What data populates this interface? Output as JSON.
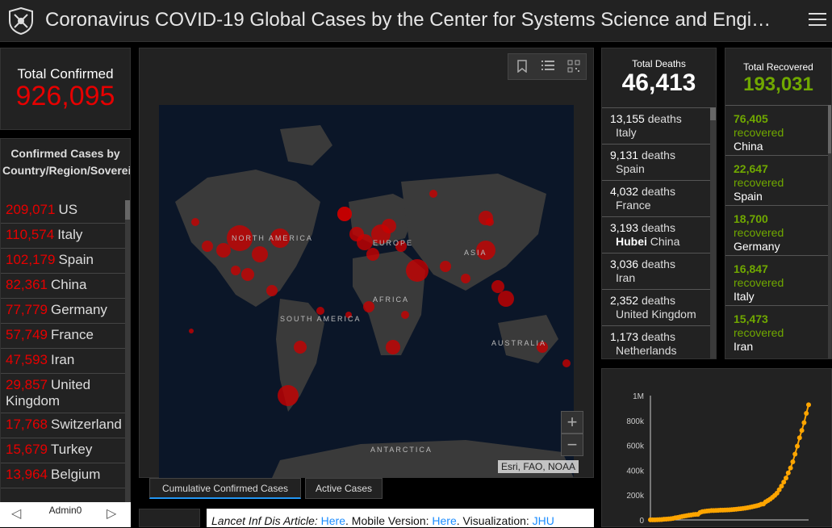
{
  "header": {
    "title": "Coronavirus COVID-19 Global Cases by the Center for Systems Science and Engi…"
  },
  "total_confirmed": {
    "label": "Total Confirmed",
    "value": "926,095"
  },
  "confirmed_by_country": {
    "header": "Confirmed Cases by Country/Region/Sovereignty",
    "items": [
      {
        "count": "209,071",
        "name": "US"
      },
      {
        "count": "110,574",
        "name": "Italy"
      },
      {
        "count": "102,179",
        "name": "Spain"
      },
      {
        "count": "82,361",
        "name": "China"
      },
      {
        "count": "77,779",
        "name": "Germany"
      },
      {
        "count": "57,749",
        "name": "France"
      },
      {
        "count": "47,593",
        "name": "Iran"
      },
      {
        "count": "29,857",
        "name": "United Kingdom"
      },
      {
        "count": "17,768",
        "name": "Switzerland"
      },
      {
        "count": "15,679",
        "name": "Turkey"
      },
      {
        "count": "13,964",
        "name": "Belgium"
      }
    ]
  },
  "pager": {
    "label": "Admin0"
  },
  "map": {
    "labels": {
      "north_america": "NORTH AMERICA",
      "south_america": "SOUTH AMERICA",
      "europe": "EUROPE",
      "asia": "ASIA",
      "africa": "AFRICA",
      "australia": "AUSTRALIA",
      "antarctica": "ANTARCTICA"
    },
    "attribution": "Esri, FAO, NOAA",
    "zoom_in": "+",
    "zoom_out": "−"
  },
  "tabs": [
    {
      "label": "Cumulative Confirmed Cases",
      "active": true
    },
    {
      "label": "Active Cases",
      "active": false
    }
  ],
  "info_bar": {
    "article_label": "Lancet Inf Dis Article: ",
    "article_link": "Here",
    "mobile_label": ". Mobile Version: ",
    "mobile_link": "Here",
    "viz_label": ". Visualization: ",
    "viz_link": "JHU"
  },
  "total_deaths": {
    "label": "Total Deaths",
    "value": "46,413",
    "items": [
      {
        "count": "13,155",
        "unit": "deaths",
        "place": "Italy",
        "region": ""
      },
      {
        "count": "9,131",
        "unit": "deaths",
        "place": "Spain",
        "region": ""
      },
      {
        "count": "4,032",
        "unit": "deaths",
        "place": "France",
        "region": ""
      },
      {
        "count": "3,193",
        "unit": "deaths",
        "place": "China",
        "region": "Hubei"
      },
      {
        "count": "3,036",
        "unit": "deaths",
        "place": "Iran",
        "region": ""
      },
      {
        "count": "2,352",
        "unit": "deaths",
        "place": "United Kingdom",
        "region": ""
      },
      {
        "count": "1,173",
        "unit": "deaths",
        "place": "Netherlands",
        "region": ""
      }
    ]
  },
  "total_recovered": {
    "label": "Total Recovered",
    "value": "193,031",
    "items": [
      {
        "count": "76,405",
        "unit": "recovered",
        "place": "China"
      },
      {
        "count": "22,647",
        "unit": "recovered",
        "place": "Spain"
      },
      {
        "count": "18,700",
        "unit": "recovered",
        "place": "Germany"
      },
      {
        "count": "16,847",
        "unit": "recovered",
        "place": "Italy"
      },
      {
        "count": "15,473",
        "unit": "recovered",
        "place": "Iran"
      }
    ]
  },
  "colors": {
    "confirmed": "#e60000",
    "recovered": "#70a800",
    "chart_line": "#ffa500",
    "map_ocean": "#0b1628",
    "land": "#3a3a3a"
  },
  "chart_data": {
    "type": "line",
    "title": "",
    "xlabel": "",
    "ylabel": "",
    "yticks": [
      "0",
      "200k",
      "400k",
      "600k",
      "800k",
      "1M"
    ],
    "ylim": [
      0,
      1000000
    ],
    "grid": false,
    "series": [
      {
        "values": [
          555,
          654,
          941,
          1434,
          2118,
          2927,
          5578,
          6166,
          8234,
          9927,
          12038,
          16787,
          19881,
          23892,
          27635,
          30817,
          34391,
          37120,
          40150,
          42762,
          44802,
          45221,
          60368,
          66885,
          69030,
          71224,
          73258,
          75136,
          75639,
          76197,
          76819,
          78572,
          78958,
          79561,
          80406,
          81388,
          82746,
          84112,
          86011,
          88369,
          90306,
          92840,
          95120,
          97886,
          101801,
          105847,
          109821,
          113590,
          118620,
          125875,
          128352,
          145205,
          156101,
          167454,
          181574,
          197102,
          214821,
          242570,
          272208,
          304507,
          336953,
          378235,
          418045,
          467653,
          529591,
          593291,
          660706,
          720117,
          782365,
          857487,
          926095
        ]
      }
    ]
  }
}
